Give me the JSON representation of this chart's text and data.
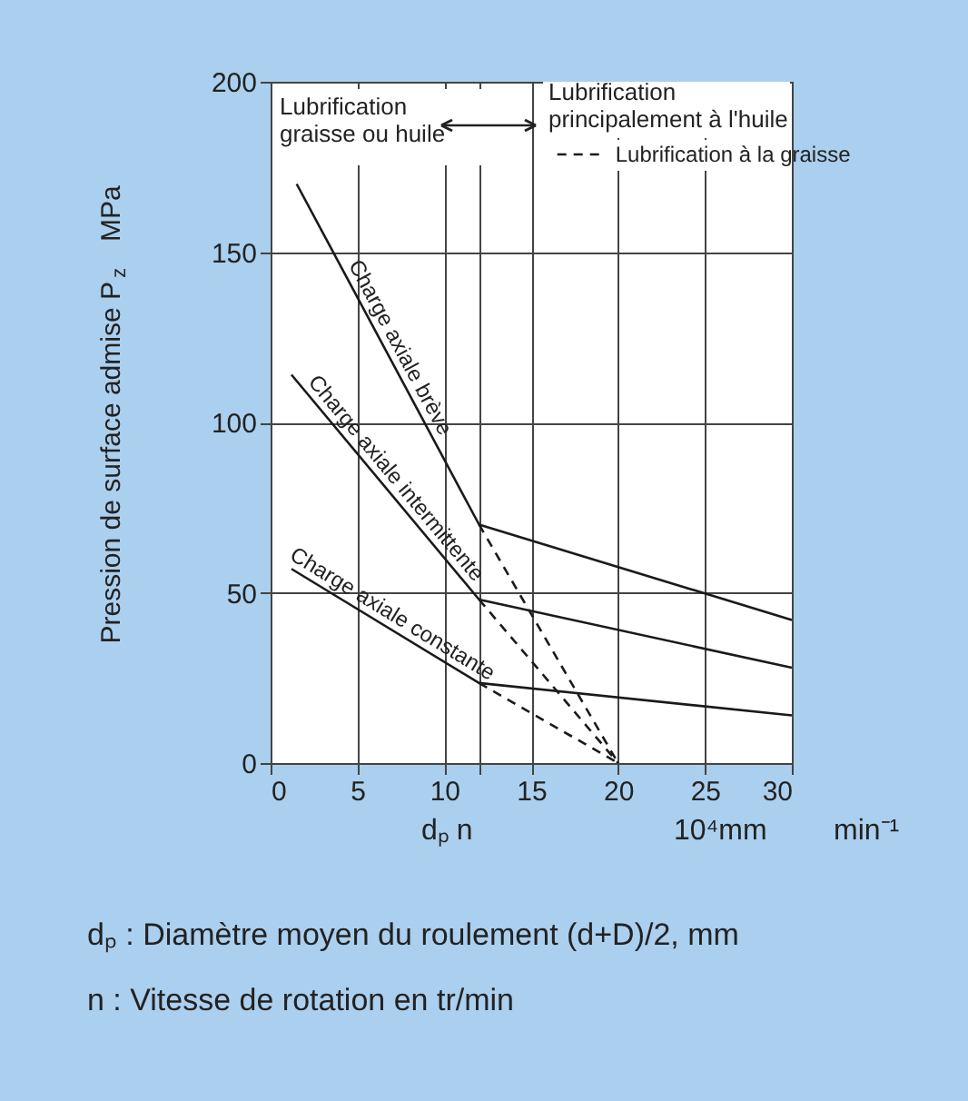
{
  "chart_data": {
    "type": "line",
    "ylabel": "Pression de surface admise  P$_{z}$  MPa",
    "xlabel": "dₚ  n      10⁴mm   min⁻¹",
    "xlim": [
      0,
      30
    ],
    "ylim": [
      0,
      200
    ],
    "xticks": [
      0,
      5,
      10,
      {
        "value": 12,
        "label": null
      },
      15,
      20,
      25,
      30
    ],
    "yticks": [
      0,
      50,
      100,
      150,
      200
    ],
    "grid": true,
    "legend": "top right",
    "series": [
      {
        "name": "Charge axiale brève",
        "color": "#1a1a1a",
        "line_style": "solid",
        "x": [
          1.5,
          12,
          30
        ],
        "values": [
          170,
          70,
          42
        ]
      },
      {
        "name": "Charge axiale intermittente",
        "color": "#1a1a1a",
        "line_style": "solid",
        "x": [
          1.2,
          12,
          30
        ],
        "values": [
          114,
          48,
          28
        ]
      },
      {
        "name": "Charge axiale constante",
        "color": "#1a1a1a",
        "line_style": "solid",
        "x": [
          1.2,
          12,
          30
        ],
        "values": [
          57,
          23.5,
          14
        ]
      },
      {
        "name": "Lubrification à la graisse",
        "color": "#1a1a1a",
        "line_style": "dashed",
        "x": [
          12,
          20
        ],
        "values": [
          70,
          0
        ]
      },
      {
        "color": "#1a1a1a",
        "line_style": "dashed",
        "x": [
          12,
          20
        ],
        "values": [
          48,
          0
        ]
      },
      {
        "color": "#1a1a1a",
        "line_style": "dashed",
        "x": [
          12,
          20
        ],
        "values": [
          23.5,
          0
        ]
      }
    ],
    "annotations": [
      "Lubrification\ngraisse ou huile",
      "Lubrification\nprincipalement à l'huile",
      "dₚ : Diamètre moyen du roulement (d+D)/2, mm",
      "n : Vitesse de rotation en tr/min"
    ]
  }
}
